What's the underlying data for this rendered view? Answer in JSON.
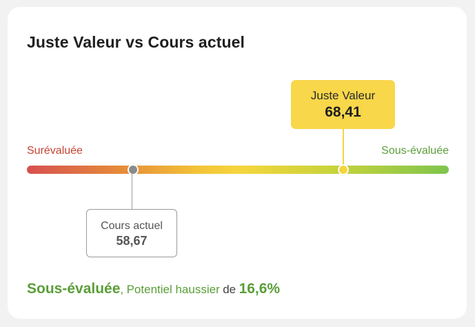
{
  "card": {
    "title": "Juste Valeur vs Cours actuel"
  },
  "scale": {
    "left_label": "Surévaluée",
    "right_label": "Sous-évaluée",
    "colors": {
      "overvalued": "#c84234",
      "undervalued": "#5a9e38",
      "fair_value": "#f8d74a",
      "current_price": "#8a8a8a"
    }
  },
  "fair_value": {
    "label": "Juste Valeur",
    "value": "68,41"
  },
  "current_price": {
    "label": "Cours actuel",
    "value": "58,67"
  },
  "summary": {
    "status": "Sous-évaluée",
    "comma": ",",
    "text": "Potentiel haussier",
    "connector": "de",
    "percent": "16,6%"
  }
}
